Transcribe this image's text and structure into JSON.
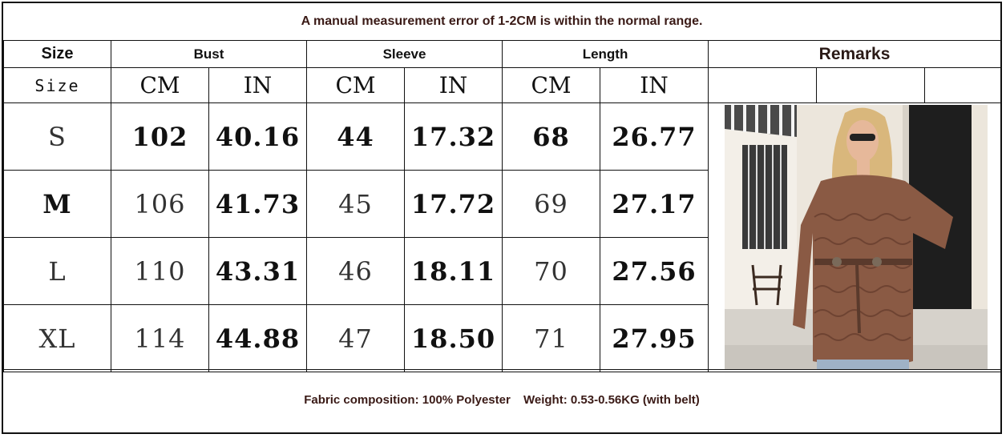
{
  "notice": "A manual measurement error of 1-2CM is within the normal range.",
  "headers": {
    "size": "Size",
    "size_sub": "Size",
    "bust": "Bust",
    "sleeve": "Sleeve",
    "length": "Length",
    "remarks": "Remarks",
    "cm": "CM",
    "in": "IN"
  },
  "rows": [
    {
      "size": "S",
      "bust_cm": "102",
      "bust_in": "40.16",
      "sleeve_cm": "44",
      "sleeve_in": "17.32",
      "length_cm": "68",
      "length_in": "26.77"
    },
    {
      "size": "M",
      "bust_cm": "106",
      "bust_in": "41.73",
      "sleeve_cm": "45",
      "sleeve_in": "17.72",
      "length_cm": "69",
      "length_in": "27.17"
    },
    {
      "size": "L",
      "bust_cm": "110",
      "bust_in": "43.31",
      "sleeve_cm": "46",
      "sleeve_in": "18.11",
      "length_cm": "70",
      "length_in": "27.56"
    },
    {
      "size": "XL",
      "bust_cm": "114",
      "bust_in": "44.88",
      "sleeve_cm": "47",
      "sleeve_in": "18.50",
      "length_cm": "71",
      "length_in": "27.95"
    }
  ],
  "footer": {
    "fabric": "Fabric composition: 100% Polyester",
    "weight": "Weight: 0.53-0.56KG (with belt)"
  },
  "colors": {
    "text_brown": "#3a1a16",
    "sweater": "#8a5a44",
    "border": "#111111"
  }
}
